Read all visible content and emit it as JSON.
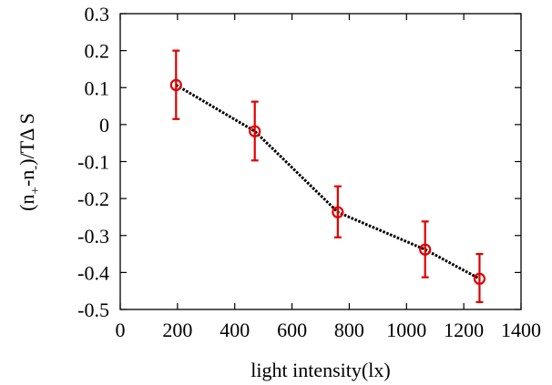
{
  "chart_data": {
    "type": "scatter",
    "title": "",
    "xlabel": "light intensity(lx)",
    "ylabel": {
      "prefix": "(n",
      "sub_plus": "+",
      "middle": "-n",
      "sub_minus": "-",
      "suffix": ")/TΔ S"
    },
    "xlim": [
      0,
      1400
    ],
    "ylim": [
      -0.5,
      0.3
    ],
    "xticks": [
      0,
      200,
      400,
      600,
      800,
      1000,
      1200,
      1400
    ],
    "yticks": [
      0.3,
      0.2,
      0.1,
      0,
      -0.1,
      -0.2,
      -0.3,
      -0.4,
      -0.5
    ],
    "xtick_labels": [
      "0",
      "200",
      "400",
      "600",
      "800",
      "1000",
      "1200",
      "1400"
    ],
    "ytick_labels": [
      "0.3",
      "0.2",
      "0.1",
      "0",
      "-0.1",
      "-0.2",
      "-0.3",
      "-0.4",
      "-0.5"
    ],
    "grid": false,
    "legend": "none",
    "series": [
      {
        "x": [
          195,
          470,
          760,
          1065,
          1255
        ],
        "y": [
          0.107,
          -0.018,
          -0.237,
          -0.338,
          -0.417
        ],
        "yerr_low": [
          0.015,
          -0.097,
          -0.305,
          -0.413,
          -0.48
        ],
        "yerr_high": [
          0.2,
          0.062,
          -0.167,
          -0.262,
          -0.35
        ],
        "marker": "open-circle",
        "marker_color": "#e00000",
        "line_style": "dotted",
        "line_color": "#000000"
      }
    ]
  }
}
